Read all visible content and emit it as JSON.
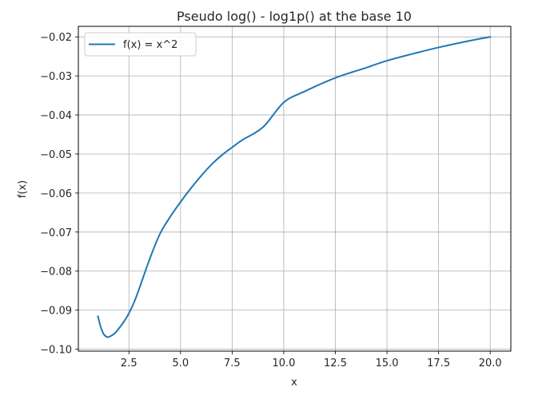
{
  "chart_data": {
    "type": "line",
    "title": "Pseudo log() - log1p() at the base 10",
    "xlabel": "x",
    "ylabel": "f(x)",
    "xlim": [
      0.05,
      21.0
    ],
    "ylim": [
      -0.1005,
      -0.0173
    ],
    "grid": true,
    "legend_position": "upper left",
    "x_ticks": [
      "2.5",
      "5.0",
      "7.5",
      "10.0",
      "12.5",
      "15.0",
      "17.5",
      "20.0"
    ],
    "y_ticks": [
      "−0.02",
      "−0.03",
      "−0.04",
      "−0.05",
      "−0.06",
      "−0.07",
      "−0.08",
      "−0.09",
      "−0.10"
    ],
    "series": [
      {
        "name": "f(x) = x^2",
        "color": "#1f77b4",
        "x": [
          1.0,
          1.1,
          1.2,
          1.3,
          1.45,
          1.6,
          1.8,
          2.0,
          2.25,
          2.5,
          2.75,
          3.0,
          3.5,
          4.0,
          4.5,
          5.0,
          5.5,
          6.0,
          6.5,
          7.0,
          7.5,
          8.0,
          9.0,
          10.0,
          11.0,
          12.5,
          14.0,
          15.0,
          16.5,
          17.5,
          19.0,
          20.0
        ],
        "y": [
          -0.0916,
          -0.0937,
          -0.0953,
          -0.0963,
          -0.0969,
          -0.0967,
          -0.096,
          -0.0948,
          -0.093,
          -0.0908,
          -0.088,
          -0.0845,
          -0.077,
          -0.0705,
          -0.0661,
          -0.0623,
          -0.0588,
          -0.0556,
          -0.0527,
          -0.0503,
          -0.0483,
          -0.0464,
          -0.0431,
          -0.0368,
          -0.034,
          -0.0305,
          -0.0279,
          -0.0261,
          -0.024,
          -0.0227,
          -0.021,
          -0.02
        ]
      }
    ]
  },
  "legend": {
    "items": [
      {
        "label": "f(x) = x^2",
        "color": "#1f77b4"
      }
    ]
  }
}
